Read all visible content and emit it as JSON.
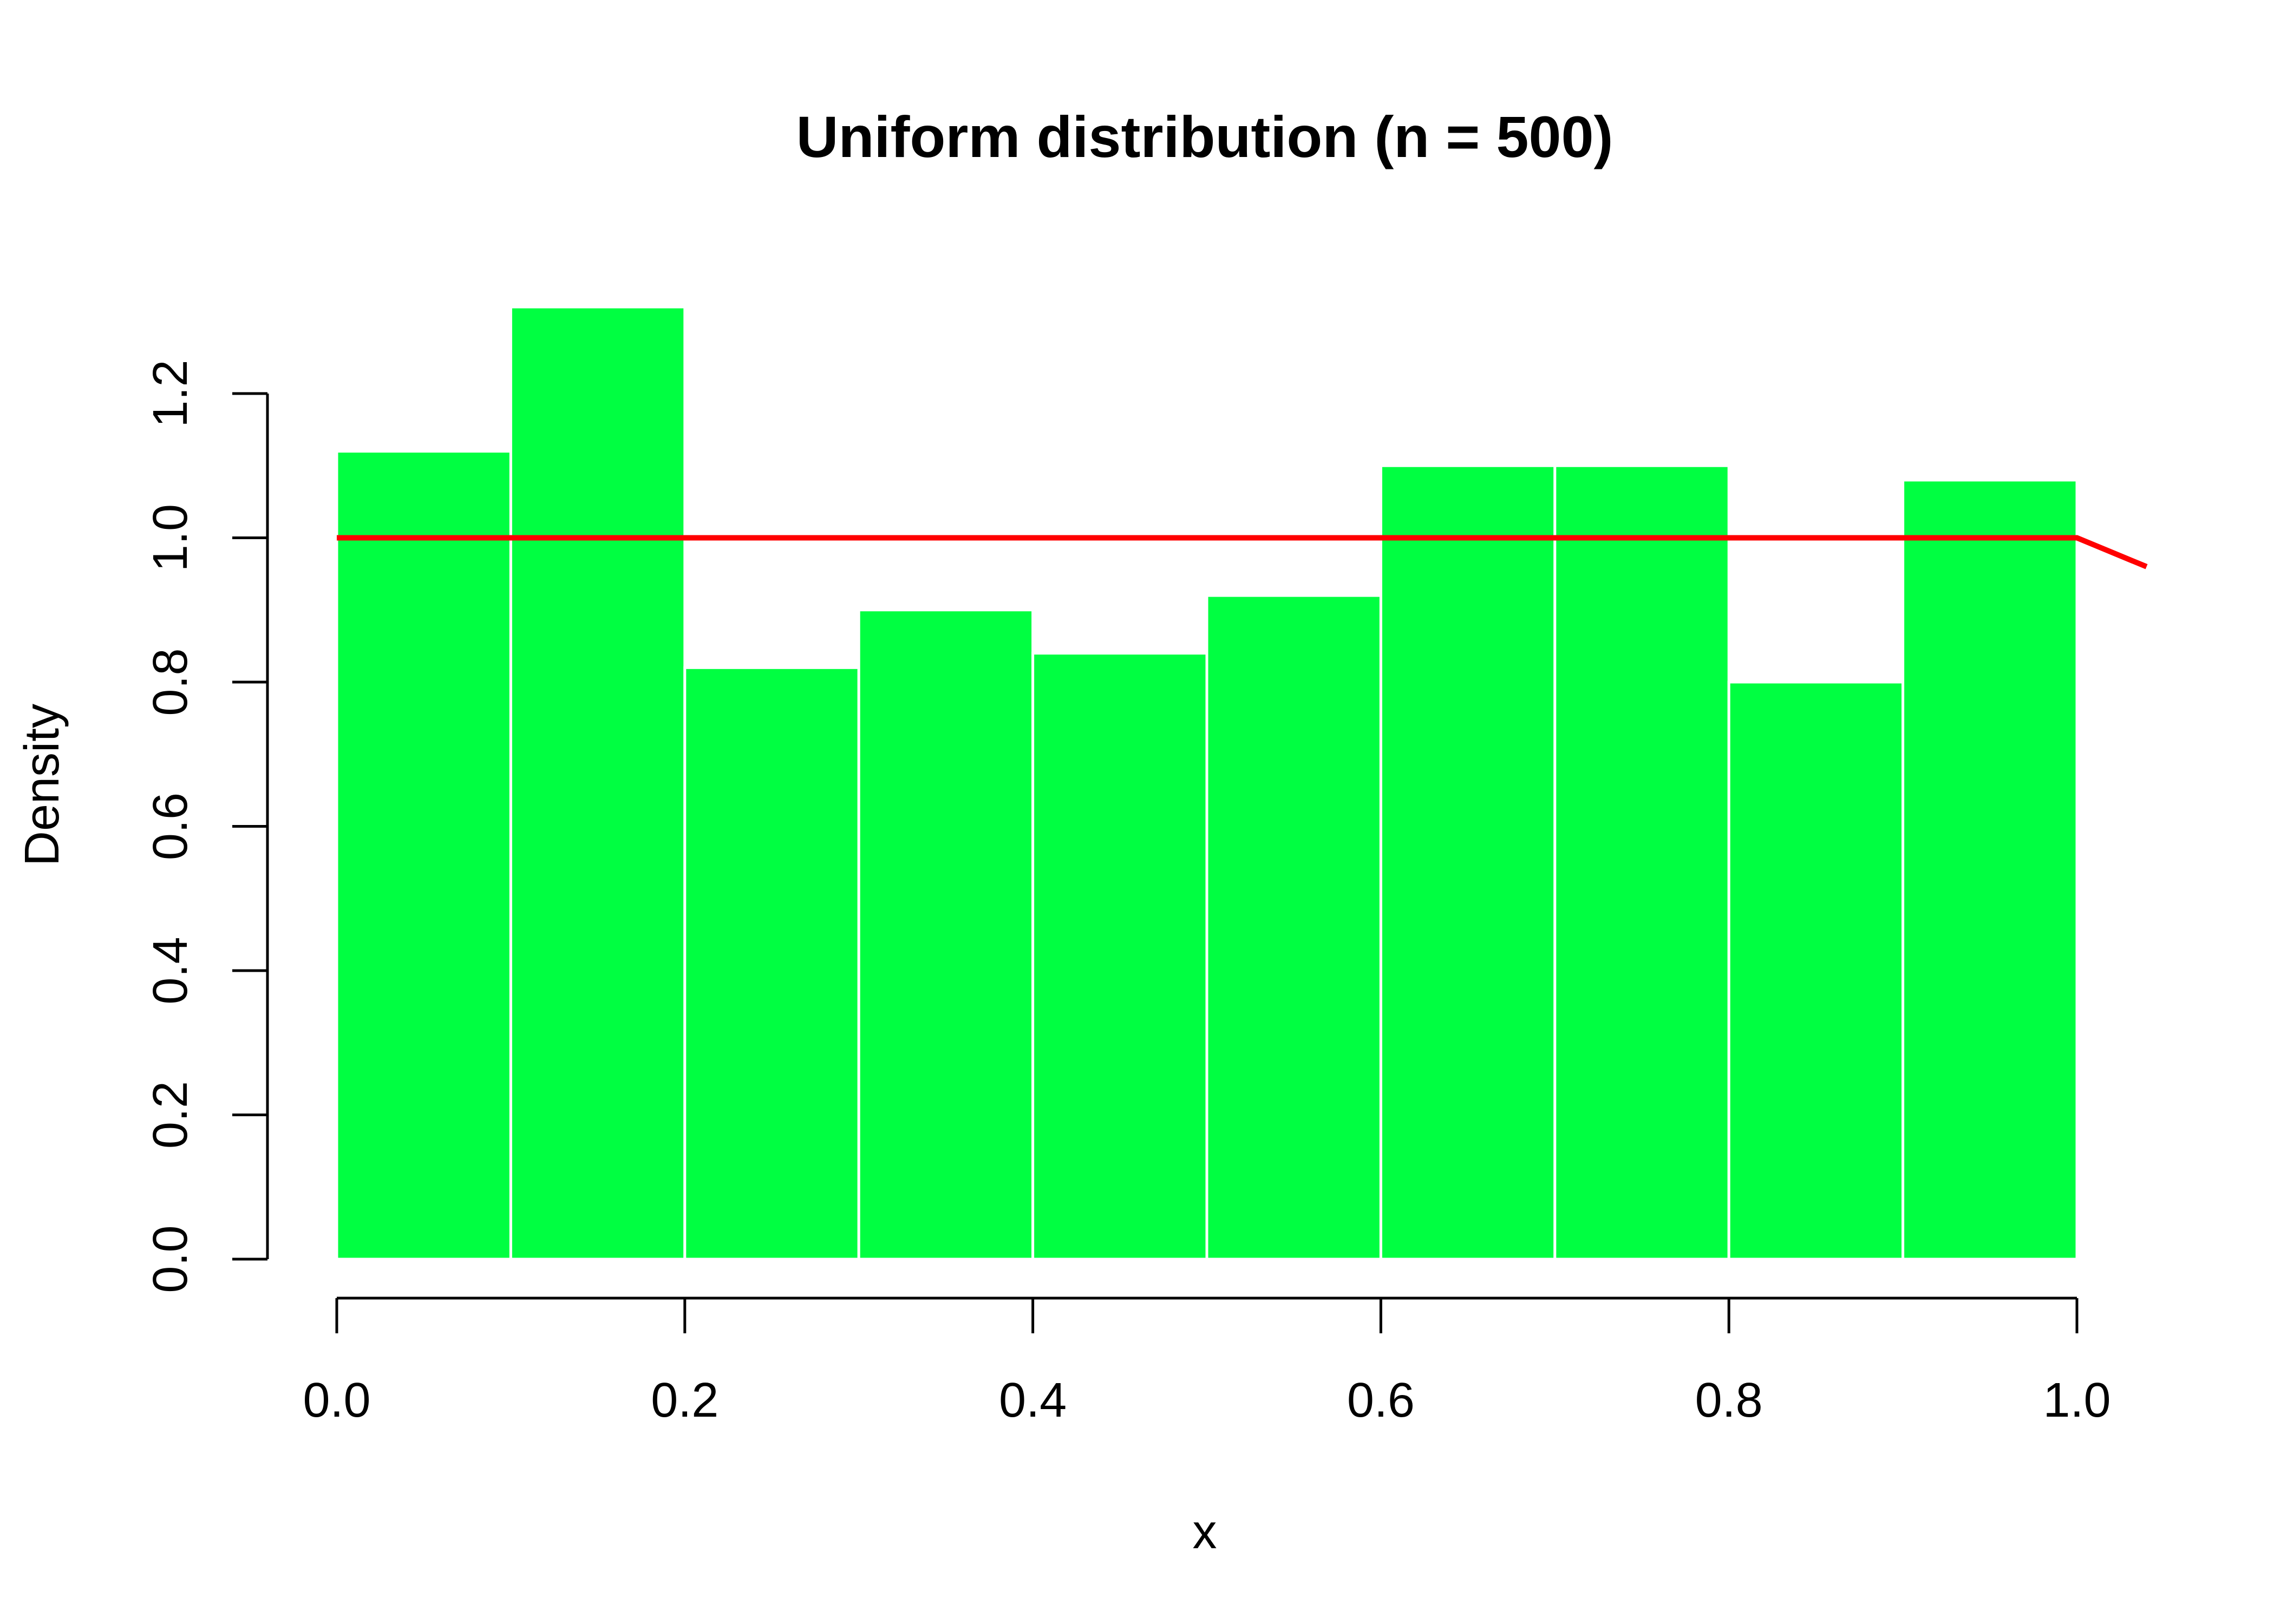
{
  "chart_data": {
    "type": "bar",
    "title": "Uniform distribution (n = 500)",
    "xlabel": "x",
    "ylabel": "Density",
    "bins": [
      {
        "x0": 0.0,
        "x1": 0.1,
        "density": 1.12
      },
      {
        "x0": 0.1,
        "x1": 0.2,
        "density": 1.32
      },
      {
        "x0": 0.2,
        "x1": 0.3,
        "density": 0.82
      },
      {
        "x0": 0.3,
        "x1": 0.4,
        "density": 0.9
      },
      {
        "x0": 0.4,
        "x1": 0.5,
        "density": 0.84
      },
      {
        "x0": 0.5,
        "x1": 0.6,
        "density": 0.92
      },
      {
        "x0": 0.6,
        "x1": 0.7,
        "density": 1.1
      },
      {
        "x0": 0.7,
        "x1": 0.8,
        "density": 1.1
      },
      {
        "x0": 0.8,
        "x1": 0.9,
        "density": 0.8
      },
      {
        "x0": 0.9,
        "x1": 1.0,
        "density": 1.08
      }
    ],
    "density_curve": {
      "x": [
        0.0,
        1.0,
        1.04
      ],
      "y": [
        1.0,
        1.0,
        0.96
      ]
    },
    "x_ticks": [
      0.0,
      0.2,
      0.4,
      0.6,
      0.8,
      1.0
    ],
    "x_tick_labels": [
      "0.0",
      "0.2",
      "0.4",
      "0.6",
      "0.8",
      "1.0"
    ],
    "y_ticks": [
      0.0,
      0.2,
      0.4,
      0.6,
      0.8,
      1.0,
      1.2
    ],
    "y_tick_labels": [
      "0.0",
      "0.2",
      "0.4",
      "0.6",
      "0.8",
      "1.0",
      "1.2"
    ],
    "xlim": [
      0.0,
      1.04
    ],
    "ylim": [
      0.0,
      1.32
    ],
    "grid": false,
    "legend": "none",
    "colors": {
      "bars": "#00ff41",
      "bar_border": "#ffffff",
      "curve": "#ff0000",
      "axis": "#000000"
    }
  }
}
